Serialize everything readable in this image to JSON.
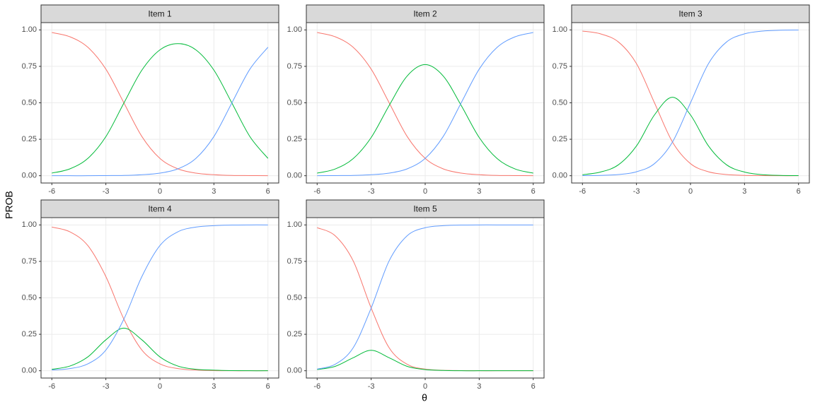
{
  "xlabel": "θ",
  "ylabel": "PROB",
  "chart_data": [
    {
      "type": "line",
      "title": "Item 1",
      "x": [
        -6,
        -5,
        -4,
        -3,
        -2,
        -1,
        0,
        1,
        2,
        3,
        4,
        5,
        6
      ],
      "series": [
        {
          "color": "#F8766D",
          "values": [
            0.982,
            0.953,
            0.881,
            0.731,
            0.5,
            0.269,
            0.119,
            0.047,
            0.018,
            0.007,
            0.002,
            0.001,
            0.0
          ]
        },
        {
          "color": "#00BA38",
          "values": [
            0.018,
            0.047,
            0.119,
            0.268,
            0.498,
            0.724,
            0.863,
            0.906,
            0.863,
            0.724,
            0.498,
            0.268,
            0.119
          ]
        },
        {
          "color": "#619CFF",
          "values": [
            0.0,
            0.0,
            0.0,
            0.001,
            0.002,
            0.007,
            0.018,
            0.047,
            0.119,
            0.269,
            0.5,
            0.731,
            0.881
          ]
        }
      ],
      "xlim": [
        -6.6,
        6.6
      ],
      "ylim": [
        -0.05,
        1.05
      ],
      "xticks": [
        -6,
        -3,
        0,
        3,
        6
      ],
      "yticks": [
        {
          "value": 0,
          "label": "0.00"
        },
        {
          "value": 0.25,
          "label": "0.25"
        },
        {
          "value": 0.5,
          "label": "0.50"
        },
        {
          "value": 0.75,
          "label": "0.75"
        },
        {
          "value": 1,
          "label": "1.00"
        }
      ],
      "grid": true
    },
    {
      "type": "line",
      "title": "Item 2",
      "x": [
        -6,
        -5,
        -4,
        -3,
        -2,
        -1,
        0,
        1,
        2,
        3,
        4,
        5,
        6
      ],
      "series": [
        {
          "color": "#F8766D",
          "values": [
            0.982,
            0.953,
            0.881,
            0.731,
            0.5,
            0.269,
            0.119,
            0.047,
            0.018,
            0.007,
            0.002,
            0.001,
            0.0
          ]
        },
        {
          "color": "#00BA38",
          "values": [
            0.018,
            0.046,
            0.117,
            0.262,
            0.482,
            0.684,
            0.762,
            0.684,
            0.482,
            0.262,
            0.117,
            0.046,
            0.018
          ]
        },
        {
          "color": "#619CFF",
          "values": [
            0.0,
            0.001,
            0.002,
            0.007,
            0.018,
            0.047,
            0.119,
            0.269,
            0.5,
            0.731,
            0.881,
            0.953,
            0.982
          ]
        }
      ],
      "xlim": [
        -6.6,
        6.6
      ],
      "ylim": [
        -0.05,
        1.05
      ],
      "xticks": [
        -6,
        -3,
        0,
        3,
        6
      ],
      "yticks": [
        {
          "value": 0,
          "label": "0.00"
        },
        {
          "value": 0.25,
          "label": "0.25"
        },
        {
          "value": 0.5,
          "label": "0.50"
        },
        {
          "value": 0.75,
          "label": "0.75"
        },
        {
          "value": 1,
          "label": "1.00"
        }
      ],
      "grid": true
    },
    {
      "type": "line",
      "title": "Item 3",
      "x": [
        -6,
        -5,
        -4,
        -3,
        -2,
        -1,
        0,
        1,
        2,
        3,
        4,
        5,
        6
      ],
      "series": [
        {
          "color": "#F8766D",
          "values": [
            0.992,
            0.973,
            0.917,
            0.769,
            0.5,
            0.231,
            0.083,
            0.027,
            0.008,
            0.002,
            0.001,
            0.0,
            0.0
          ]
        },
        {
          "color": "#00BA38",
          "values": [
            0.007,
            0.025,
            0.075,
            0.204,
            0.417,
            0.538,
            0.417,
            0.204,
            0.075,
            0.025,
            0.007,
            0.002,
            0.001
          ]
        },
        {
          "color": "#619CFF",
          "values": [
            0.001,
            0.002,
            0.008,
            0.027,
            0.083,
            0.231,
            0.5,
            0.769,
            0.917,
            0.973,
            0.992,
            0.998,
            0.999
          ]
        }
      ],
      "xlim": [
        -6.6,
        6.6
      ],
      "ylim": [
        -0.05,
        1.05
      ],
      "xticks": [
        -6,
        -3,
        0,
        3,
        6
      ],
      "yticks": [
        {
          "value": 0,
          "label": "0.00"
        },
        {
          "value": 0.25,
          "label": "0.25"
        },
        {
          "value": 0.5,
          "label": "0.50"
        },
        {
          "value": 0.75,
          "label": "0.75"
        },
        {
          "value": 1,
          "label": "1.00"
        }
      ],
      "grid": true
    },
    {
      "type": "line",
      "title": "Item 4",
      "x": [
        -6,
        -5,
        -4,
        -3,
        -2,
        -1,
        0,
        1,
        2,
        3,
        4,
        5,
        6
      ],
      "series": [
        {
          "color": "#F8766D",
          "values": [
            0.985,
            0.953,
            0.858,
            0.646,
            0.354,
            0.142,
            0.047,
            0.015,
            0.005,
            0.001,
            0.0,
            0.0,
            0.0
          ]
        },
        {
          "color": "#00BA38",
          "values": [
            0.01,
            0.032,
            0.095,
            0.212,
            0.292,
            0.212,
            0.095,
            0.032,
            0.01,
            0.004,
            0.001,
            0.0,
            0.0
          ]
        },
        {
          "color": "#619CFF",
          "values": [
            0.005,
            0.015,
            0.047,
            0.142,
            0.354,
            0.646,
            0.858,
            0.953,
            0.985,
            0.995,
            0.999,
            1.0,
            1.0
          ]
        }
      ],
      "xlim": [
        -6.6,
        6.6
      ],
      "ylim": [
        -0.05,
        1.05
      ],
      "xticks": [
        -6,
        -3,
        0,
        3,
        6
      ],
      "yticks": [
        {
          "value": 0,
          "label": "0.00"
        },
        {
          "value": 0.25,
          "label": "0.25"
        },
        {
          "value": 0.5,
          "label": "0.50"
        },
        {
          "value": 0.75,
          "label": "0.75"
        },
        {
          "value": 1,
          "label": "1.00"
        }
      ],
      "grid": true
    },
    {
      "type": "line",
      "title": "Item 5",
      "x": [
        -6,
        -5,
        -4,
        -3,
        -2,
        -1,
        0,
        1,
        2,
        3,
        4,
        5,
        6
      ],
      "series": [
        {
          "color": "#F8766D",
          "values": [
            0.981,
            0.926,
            0.754,
            0.43,
            0.157,
            0.044,
            0.011,
            0.003,
            0.001,
            0.0,
            0.0,
            0.0,
            0.0
          ]
        },
        {
          "color": "#00BA38",
          "values": [
            0.008,
            0.03,
            0.089,
            0.14,
            0.089,
            0.03,
            0.008,
            0.002,
            0.0,
            0.0,
            0.0,
            0.0,
            0.0
          ]
        },
        {
          "color": "#619CFF",
          "values": [
            0.011,
            0.044,
            0.157,
            0.43,
            0.754,
            0.926,
            0.981,
            0.995,
            0.999,
            1.0,
            1.0,
            1.0,
            1.0
          ]
        }
      ],
      "xlim": [
        -6.6,
        6.6
      ],
      "ylim": [
        -0.05,
        1.05
      ],
      "xticks": [
        -6,
        -3,
        0,
        3,
        6
      ],
      "yticks": [
        {
          "value": 0,
          "label": "0.00"
        },
        {
          "value": 0.25,
          "label": "0.25"
        },
        {
          "value": 0.5,
          "label": "0.50"
        },
        {
          "value": 0.75,
          "label": "0.75"
        },
        {
          "value": 1,
          "label": "1.00"
        }
      ],
      "grid": true
    }
  ]
}
